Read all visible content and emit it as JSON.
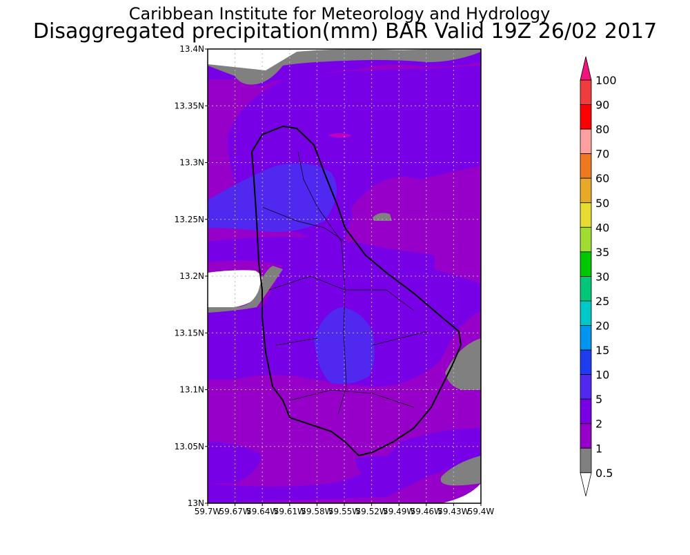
{
  "header": {
    "line1": "Caribbean Institute for Meteorology and Hydrology",
    "line2": "Disaggregated precipitation(mm) BAR Valid 19Z 26/02 2017"
  },
  "map": {
    "lat_labels": [
      "13.4N",
      "13.35N",
      "13.3N",
      "13.25N",
      "13.2N",
      "13.15N",
      "13.1N",
      "13.05N",
      "13N"
    ],
    "lon_labels": [
      "59.7W",
      "59.67W",
      "59.64W",
      "59.61W",
      "59.58W",
      "59.55W",
      "59.52W",
      "59.49W",
      "59.46W",
      "59.43W",
      "59.4W"
    ]
  },
  "legend": {
    "labels": [
      "100",
      "90",
      "80",
      "70",
      "60",
      "50",
      "40",
      "35",
      "30",
      "25",
      "20",
      "15",
      "10",
      "5",
      "2",
      "1",
      "0.5"
    ],
    "colors": [
      "#f0147c",
      "#f03c3c",
      "#ff0000",
      "#ffa0a0",
      "#f07820",
      "#e6aa28",
      "#e6dc32",
      "#a0dc32",
      "#00c800",
      "#00c878",
      "#00c8c8",
      "#0096f0",
      "#1e3cf0",
      "#5028f0",
      "#7800e6",
      "#9600c8",
      "#808080",
      "#ffffff"
    ]
  }
}
